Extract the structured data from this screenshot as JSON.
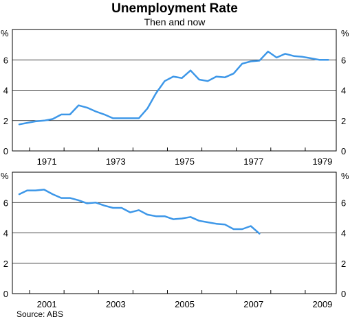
{
  "title": "Unemployment Rate",
  "subtitle": "Then and now",
  "source": "Source: ABS",
  "chart_data": [
    {
      "type": "line",
      "panel": "top",
      "unit_label": "%",
      "ylim": [
        0,
        8
      ],
      "yticks": [
        0,
        2,
        4,
        6
      ],
      "xlim": [
        1970.5,
        1979.9
      ],
      "xtick_labels": [
        "1971",
        "1973",
        "1975",
        "1977",
        "1979"
      ],
      "grid": true,
      "series": [
        {
          "color": "#3d97e8",
          "points": [
            [
              1970.7,
              1.75
            ],
            [
              1970.93,
              1.85
            ],
            [
              1971.17,
              1.95
            ],
            [
              1971.42,
              2.0
            ],
            [
              1971.67,
              2.1
            ],
            [
              1971.92,
              2.4
            ],
            [
              1972.17,
              2.4
            ],
            [
              1972.42,
              3.0
            ],
            [
              1972.67,
              2.85
            ],
            [
              1972.92,
              2.6
            ],
            [
              1973.17,
              2.4
            ],
            [
              1973.42,
              2.15
            ],
            [
              1973.67,
              2.15
            ],
            [
              1973.92,
              2.15
            ],
            [
              1974.17,
              2.15
            ],
            [
              1974.42,
              2.8
            ],
            [
              1974.67,
              3.8
            ],
            [
              1974.92,
              4.6
            ],
            [
              1975.17,
              4.9
            ],
            [
              1975.42,
              4.8
            ],
            [
              1975.67,
              5.3
            ],
            [
              1975.92,
              4.7
            ],
            [
              1976.17,
              4.6
            ],
            [
              1976.42,
              4.9
            ],
            [
              1976.67,
              4.85
            ],
            [
              1976.92,
              5.1
            ],
            [
              1977.17,
              5.75
            ],
            [
              1977.42,
              5.9
            ],
            [
              1977.67,
              5.95
            ],
            [
              1977.92,
              6.55
            ],
            [
              1978.17,
              6.15
            ],
            [
              1978.42,
              6.4
            ],
            [
              1978.67,
              6.25
            ],
            [
              1978.92,
              6.2
            ],
            [
              1979.17,
              6.1
            ],
            [
              1979.42,
              6.0
            ],
            [
              1979.67,
              6.0
            ]
          ]
        }
      ]
    },
    {
      "type": "line",
      "panel": "bottom",
      "unit_label": "%",
      "ylim": [
        0,
        8
      ],
      "yticks": [
        0,
        2,
        4,
        6
      ],
      "xlim": [
        2000.5,
        2009.9
      ],
      "xtick_labels": [
        "2001",
        "2003",
        "2005",
        "2007",
        "2009"
      ],
      "grid": true,
      "series": [
        {
          "color": "#3d97e8",
          "points": [
            [
              2000.7,
              6.55
            ],
            [
              2000.93,
              6.8
            ],
            [
              2001.17,
              6.8
            ],
            [
              2001.42,
              6.85
            ],
            [
              2001.67,
              6.55
            ],
            [
              2001.92,
              6.3
            ],
            [
              2002.17,
              6.3
            ],
            [
              2002.42,
              6.15
            ],
            [
              2002.67,
              5.95
            ],
            [
              2002.92,
              6.0
            ],
            [
              2003.17,
              5.8
            ],
            [
              2003.42,
              5.65
            ],
            [
              2003.67,
              5.65
            ],
            [
              2003.92,
              5.35
            ],
            [
              2004.17,
              5.5
            ],
            [
              2004.42,
              5.2
            ],
            [
              2004.67,
              5.1
            ],
            [
              2004.92,
              5.1
            ],
            [
              2005.17,
              4.9
            ],
            [
              2005.42,
              4.95
            ],
            [
              2005.67,
              5.05
            ],
            [
              2005.92,
              4.8
            ],
            [
              2006.17,
              4.7
            ],
            [
              2006.42,
              4.6
            ],
            [
              2006.67,
              4.55
            ],
            [
              2006.92,
              4.25
            ],
            [
              2007.17,
              4.25
            ],
            [
              2007.42,
              4.45
            ],
            [
              2007.67,
              3.95
            ]
          ]
        }
      ]
    }
  ]
}
